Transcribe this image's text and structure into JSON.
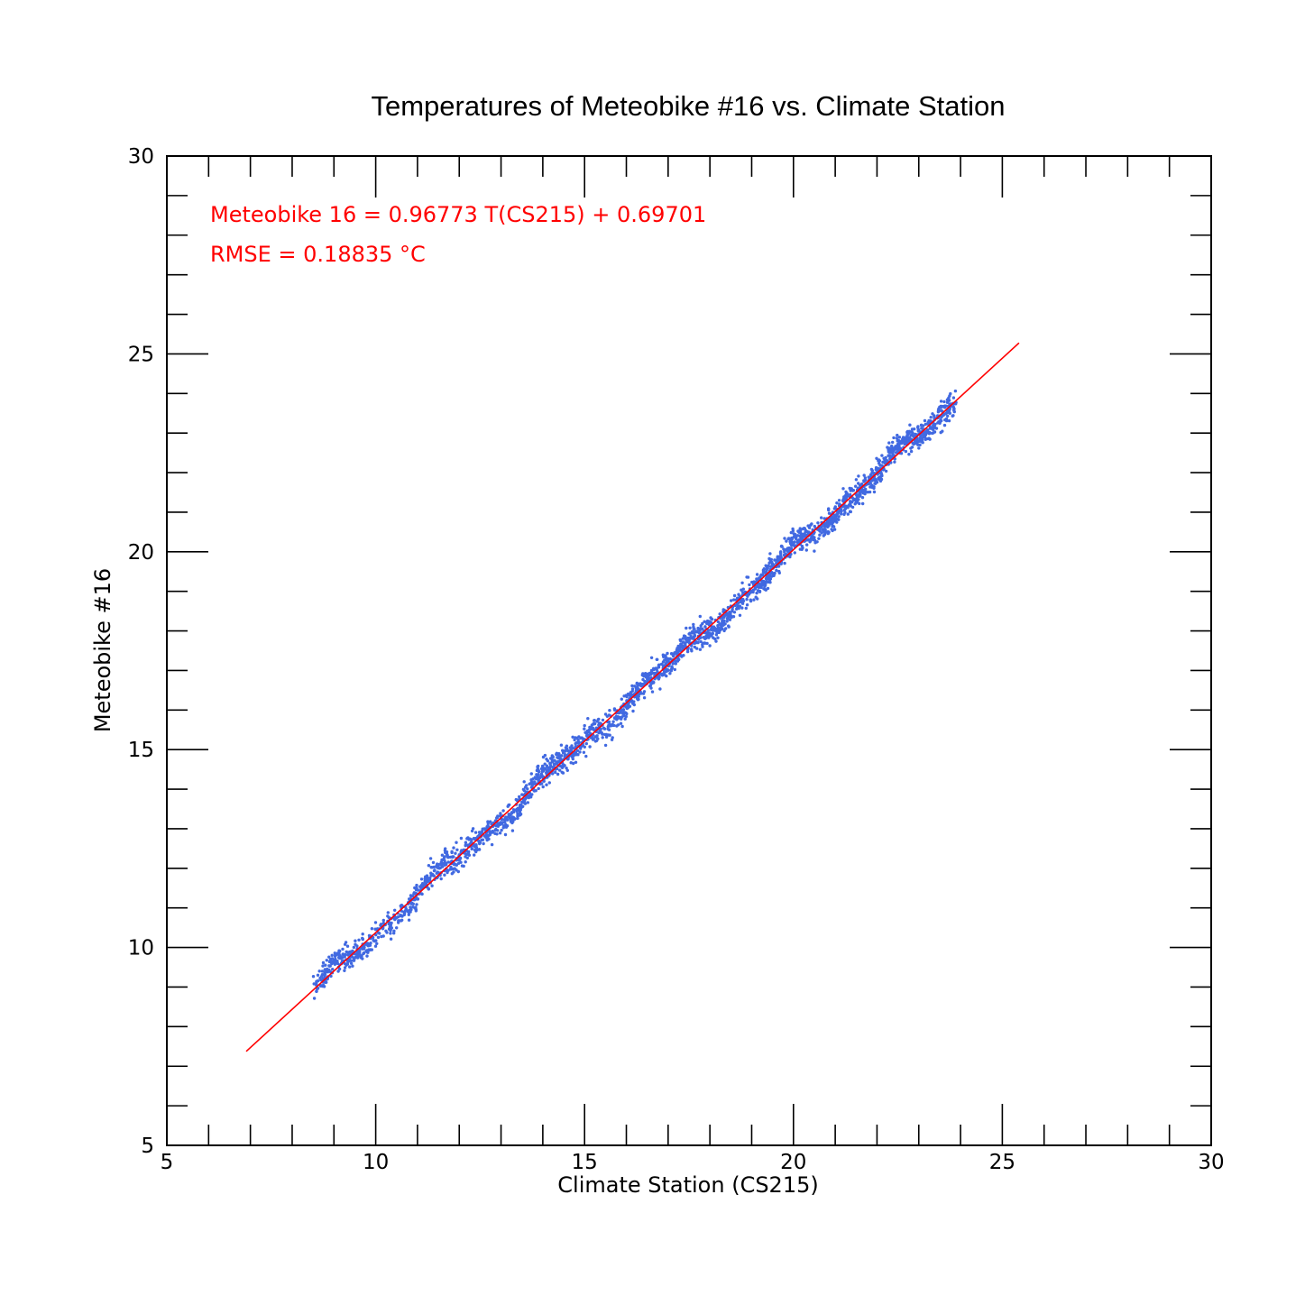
{
  "chart_data": {
    "type": "scatter",
    "title": "Temperatures of Meteobike #16 vs. Climate Station",
    "xlabel": "Climate Station (CS215)",
    "ylabel": "Meteobike #16",
    "xlim": [
      5,
      30
    ],
    "ylim": [
      5,
      30
    ],
    "x_major_ticks": [
      5,
      10,
      15,
      20,
      25,
      30
    ],
    "y_major_ticks": [
      5,
      10,
      15,
      20,
      25,
      30
    ],
    "x_tick_labels": [
      "5",
      "10",
      "15",
      "20",
      "25",
      "30"
    ],
    "y_tick_labels": [
      "5",
      "10",
      "15",
      "20",
      "25",
      "30"
    ],
    "minor_tick_step": 1,
    "grid": false,
    "series": [
      {
        "kind": "points",
        "color": "#4169e1",
        "x_range": [
          8.5,
          23.9
        ],
        "slope": 0.96773,
        "intercept": 0.69701,
        "rmse": 0.18835
      },
      {
        "kind": "fit-line",
        "color": "#ff0000",
        "x": [
          6.9,
          25.4
        ],
        "y": [
          7.374,
          25.277
        ]
      }
    ],
    "annotations": [
      {
        "text": "Meteobike 16 = 0.96773 T(CS215) + 0.69701",
        "color": "#ff0000"
      },
      {
        "text": "RMSE = 0.18835 °C",
        "color": "#ff0000"
      }
    ]
  }
}
